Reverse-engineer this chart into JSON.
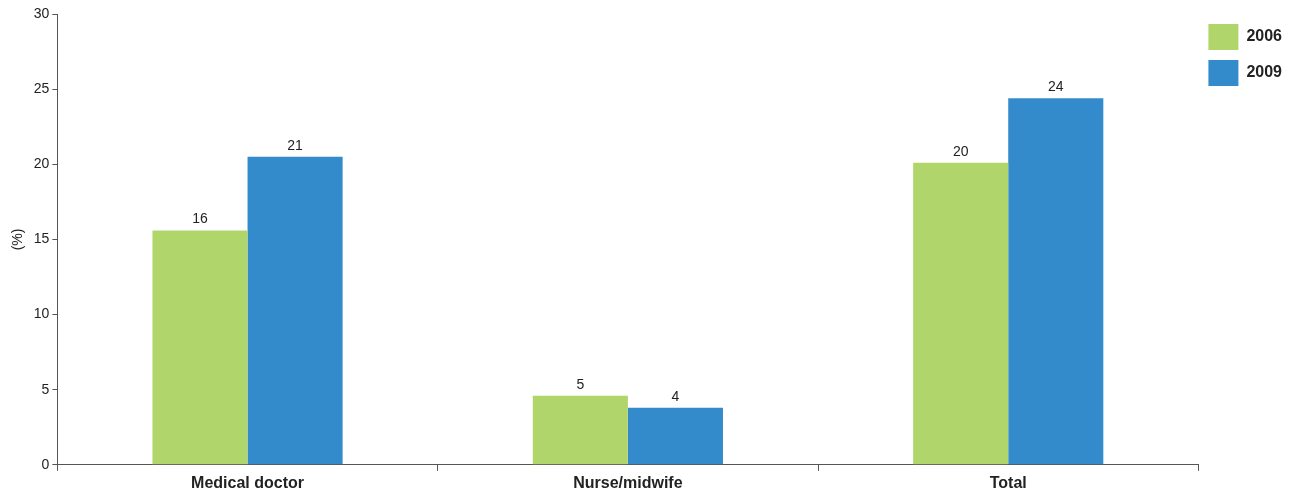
{
  "chart_data": {
    "type": "bar",
    "ylabel": "(%)",
    "categories": [
      "Medical doctor",
      "Nurse/midwife",
      "Total"
    ],
    "series": [
      {
        "name": "2006",
        "color": "#b0d56b",
        "values": [
          15.6,
          4.6,
          20.1
        ],
        "value_labels": [
          "16",
          "5",
          "20"
        ]
      },
      {
        "name": "2009",
        "color": "#348bcb",
        "values": [
          20.5,
          3.8,
          24.4
        ],
        "value_labels": [
          "21",
          "4",
          "24"
        ]
      }
    ],
    "ylim": [
      0,
      30
    ],
    "yticks": [
      0,
      5,
      10,
      15,
      20,
      25,
      30
    ],
    "grid": false,
    "legend": "top right"
  }
}
